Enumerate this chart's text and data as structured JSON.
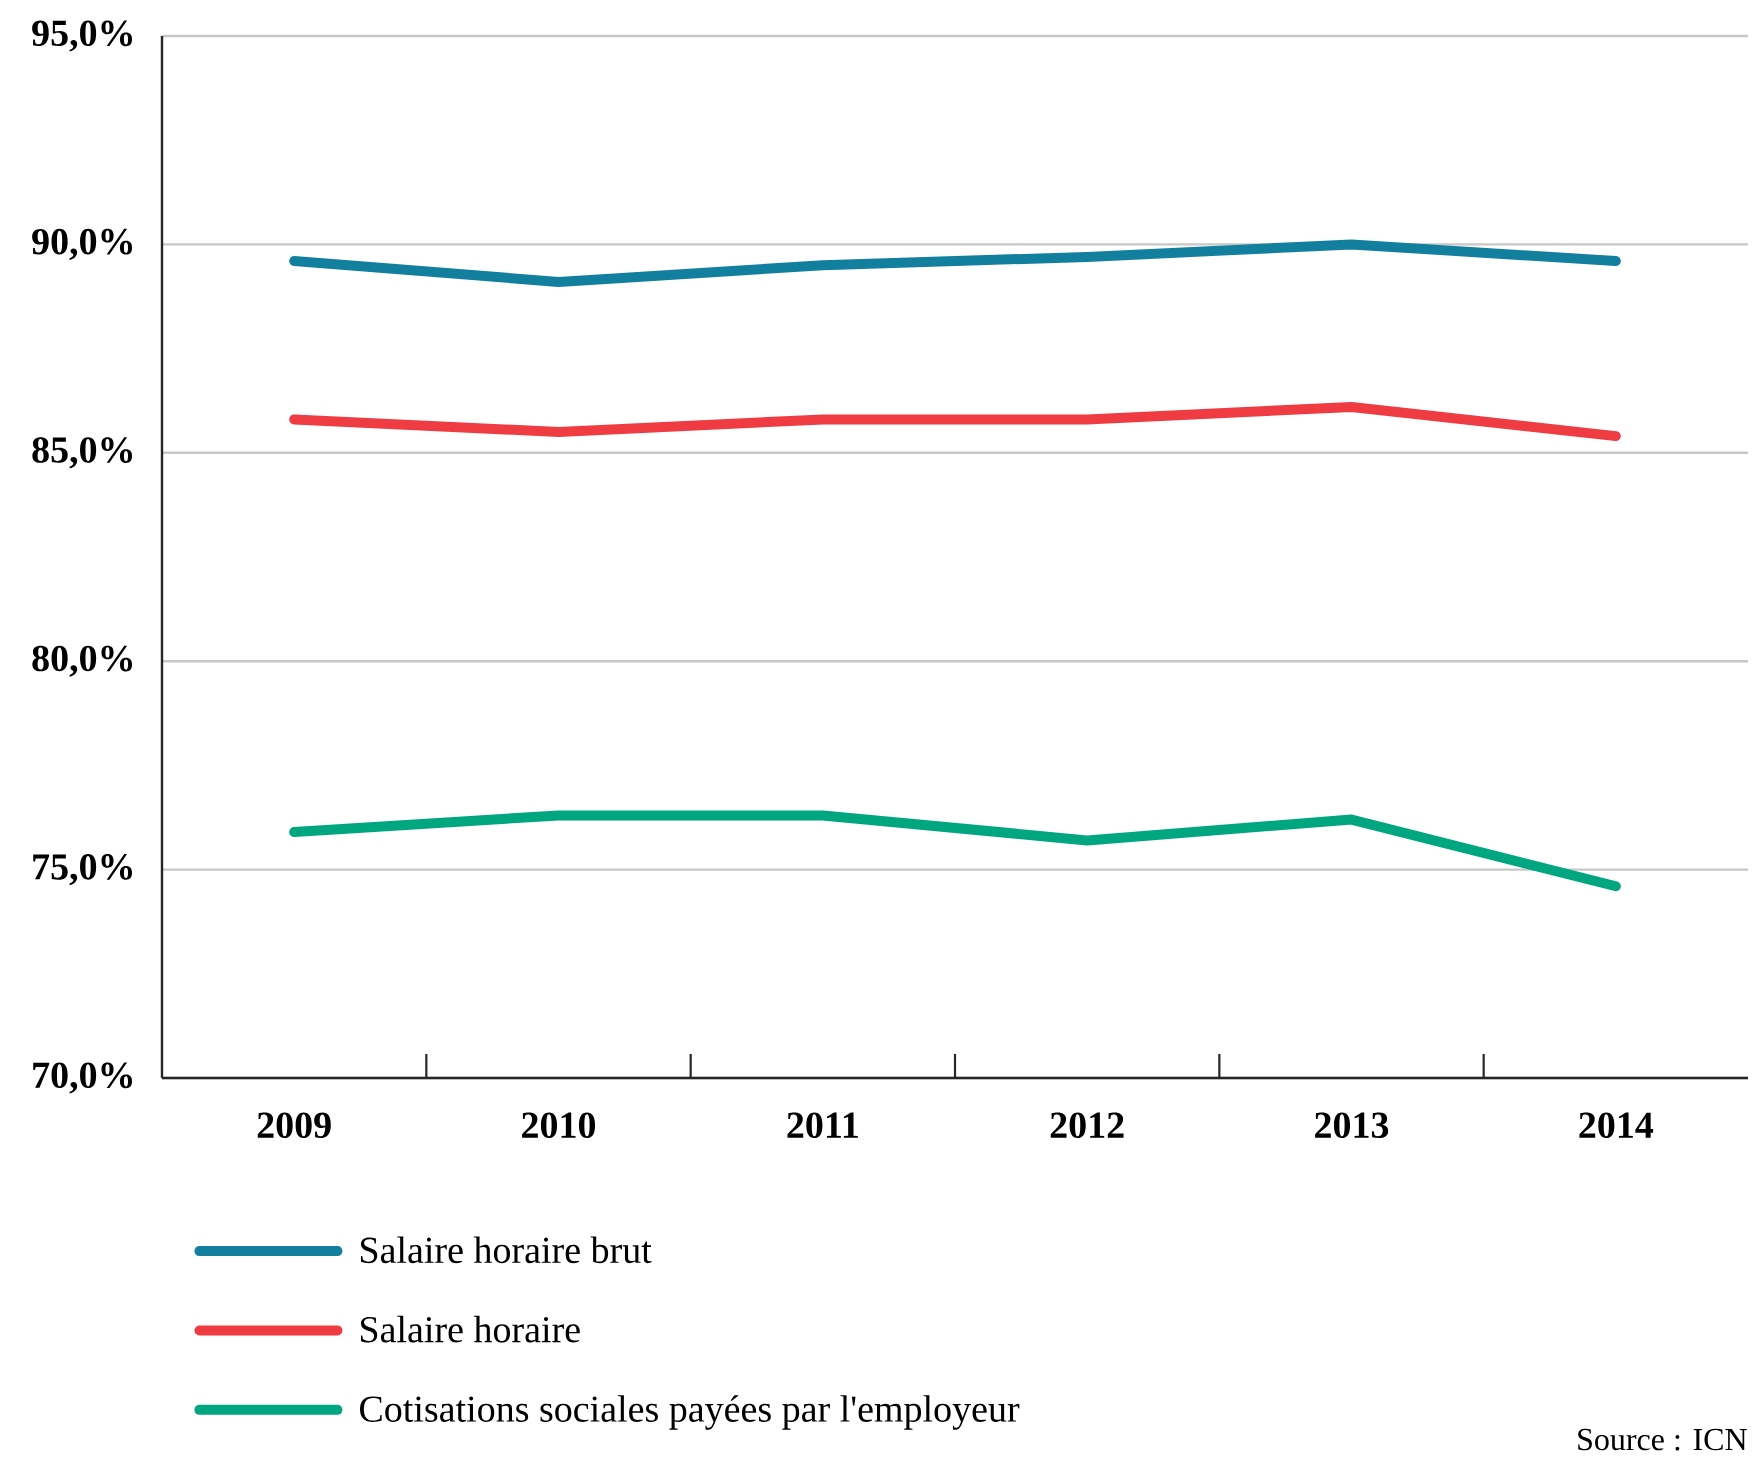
{
  "chart_data": {
    "type": "line",
    "categories": [
      "2009",
      "2010",
      "2011",
      "2012",
      "2013",
      "2014"
    ],
    "series": [
      {
        "name": "Salaire horaire brut",
        "color": "#137f9e",
        "values": [
          89.6,
          89.1,
          89.5,
          89.7,
          90.0,
          89.6
        ]
      },
      {
        "name": "Salaire horaire",
        "color": "#ef3b42",
        "values": [
          85.8,
          85.5,
          85.8,
          85.8,
          86.1,
          85.4
        ]
      },
      {
        "name": "Cotisations sociales payées par l'employeur",
        "color": "#00a680",
        "values": [
          75.9,
          76.3,
          76.3,
          75.7,
          76.2,
          74.6
        ]
      }
    ],
    "ylim": [
      70,
      95
    ],
    "yticks": [
      {
        "value": 70,
        "label": "70,0%"
      },
      {
        "value": 75,
        "label": "75,0%"
      },
      {
        "value": 80,
        "label": "80,0%"
      },
      {
        "value": 85,
        "label": "85,0%"
      },
      {
        "value": 90,
        "label": "90,0%"
      },
      {
        "value": 95,
        "label": "95,0%"
      }
    ],
    "grid": "y",
    "legend": "bottom",
    "annotations": [
      "Source : ICN"
    ]
  }
}
